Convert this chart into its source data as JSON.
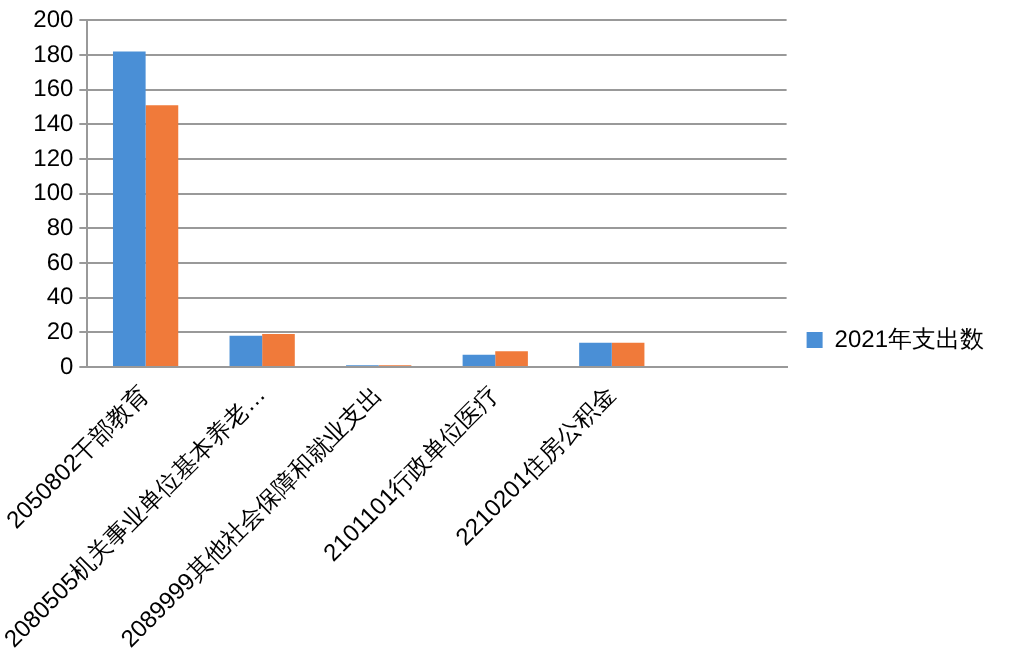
{
  "chart_data": {
    "type": "bar",
    "categories": [
      "2050802干部教育",
      "2080505机关事业单位基本养老…",
      "2089999其他社会保障和就业支出",
      "2101101行政单位医疗",
      "2210201住房公积金",
      null
    ],
    "series": [
      {
        "name": "2021年支出数",
        "color": "#4a8fd6",
        "values": [
          182,
          18,
          1,
          7,
          14,
          null
        ]
      },
      {
        "color": "#f07a3a",
        "values": [
          151,
          19,
          1,
          9,
          14,
          null
        ]
      }
    ],
    "ylim": [
      0,
      200
    ],
    "yticks": [
      0,
      20,
      40,
      60,
      80,
      100,
      120,
      140,
      160,
      180,
      200
    ],
    "grid": "y",
    "legend": "right"
  }
}
